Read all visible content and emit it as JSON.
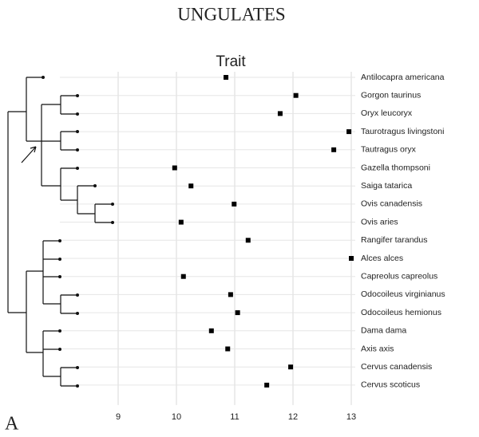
{
  "chart_data": {
    "type": "dot",
    "title": "UNGULATES",
    "x_label": "Trait",
    "panel_label": "A",
    "categories": [
      "Antilocapra americana",
      "Gorgon taurinus",
      "Oryx leucoryx",
      "Taurotragus livingstoni",
      "Tautragus oryx",
      "Gazella thompsoni",
      "Saiga tatarica",
      "Ovis canadensis",
      "Ovis aries",
      "Rangifer tarandus",
      "Alces alces",
      "Capreolus capreolus",
      "Odocoileus virginianus",
      "Odocoileus hemionus",
      "Dama dama",
      "Axis axis",
      "Cervus canadensis",
      "Cervus scoticus"
    ],
    "values": [
      10.85,
      12.05,
      11.78,
      12.96,
      12.7,
      9.97,
      10.25,
      10.99,
      10.08,
      11.23,
      13.0,
      10.12,
      10.93,
      11.05,
      10.6,
      10.88,
      11.96,
      11.55
    ],
    "color": "#000000",
    "xlim": [
      8,
      13
    ],
    "xticks": [
      9,
      10,
      11,
      12,
      13
    ],
    "grid": true
  }
}
